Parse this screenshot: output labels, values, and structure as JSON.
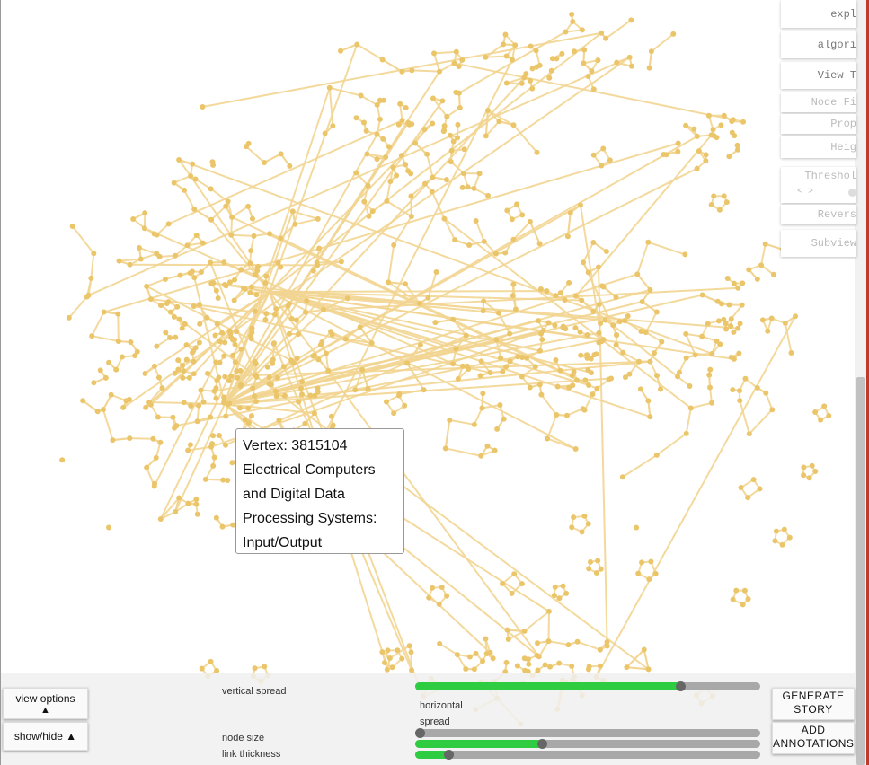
{
  "tooltip": {
    "lines": [
      "Vertex: 3815104",
      "Electrical Computers",
      "and Digital Data",
      "Processing Systems:",
      "Input/Output"
    ]
  },
  "side_menu": {
    "items": [
      {
        "label": "expl",
        "faded": false
      },
      {
        "label": "algori",
        "faded": false
      },
      {
        "label": "View T",
        "faded": false
      },
      {
        "label": "Node Fi",
        "faded": true
      },
      {
        "label": "Prop",
        "faded": true
      },
      {
        "label": "Heig",
        "faded": true
      },
      {
        "label": "Threshol",
        "faded": true
      },
      {
        "label": "Revers",
        "faded": true
      },
      {
        "label": "Subview",
        "faded": true
      }
    ],
    "threshold_arrows": "< >"
  },
  "controls": {
    "view_options": "view options",
    "view_options_arrow": "▲",
    "show_hide": "show/hide ▲",
    "vertical_spread": "vertical spread",
    "horizontal_spread_1": "horizontal",
    "horizontal_spread_2": "spread",
    "node_size": "node size",
    "link_thickness": "link thickness",
    "generate_story_1": "GENERATE",
    "generate_story_2": "STORY",
    "add_annotations_1": "ADD",
    "add_annotations_2": "ANNOTATIONS",
    "sliders": {
      "vertical_spread": 0.77,
      "horizontal_spread": 0.0,
      "node_size": 0.37,
      "link_thickness": 0.1
    }
  },
  "colors": {
    "node": "#ebc56a",
    "link": "#f2d592",
    "slider_fill": "#2ecc40",
    "slider_track": "#a8a8a8"
  }
}
